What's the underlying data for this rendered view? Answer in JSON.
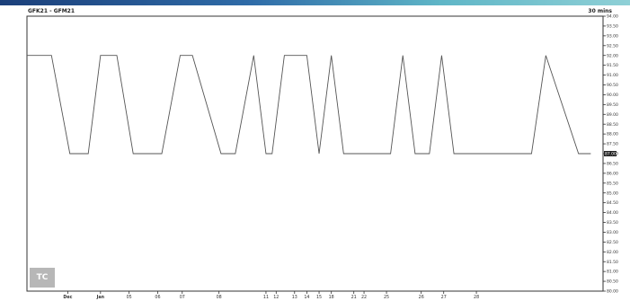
{
  "header": {
    "title": "GFK21 - GFM21",
    "interval": "30 mins"
  },
  "chart_data": {
    "type": "line",
    "x_labels": [
      {
        "label": "Dec",
        "bold": true
      },
      {
        "label": "Jan",
        "bold": true
      },
      {
        "label": "05"
      },
      {
        "label": "06"
      },
      {
        "label": "07"
      },
      {
        "label": "08"
      },
      {
        "label": "11"
      },
      {
        "label": "12"
      },
      {
        "label": "13"
      },
      {
        "label": "14"
      },
      {
        "label": "15"
      },
      {
        "label": "18"
      },
      {
        "label": "21"
      },
      {
        "label": "22"
      },
      {
        "label": "25"
      },
      {
        "label": "26"
      },
      {
        "label": "27"
      },
      {
        "label": "28"
      }
    ],
    "y_ticks": [
      "94.00",
      "93.50",
      "93.00",
      "92.50",
      "92.00",
      "91.50",
      "91.00",
      "90.50",
      "90.00",
      "89.50",
      "89.00",
      "88.50",
      "88.00",
      "87.50",
      "87.00",
      "86.50",
      "86.00",
      "85.50",
      "85.00",
      "84.50",
      "84.00",
      "83.50",
      "83.00",
      "82.50",
      "82.00",
      "81.50",
      "81.00",
      "80.50",
      "80.00"
    ],
    "ylim": [
      80.0,
      94.0
    ],
    "last_value": "87.00",
    "series": [
      {
        "color": "#555555",
        "x": [
          0,
          1.2,
          2.1,
          3.0,
          3.6,
          4.4,
          5.2,
          6.6,
          7.5,
          8.1,
          9.5,
          10.2,
          11.1,
          11.7,
          12.0,
          12.6,
          13.7,
          14.3,
          14.9,
          15.5,
          17.8,
          18.4,
          19.0,
          19.7,
          20.3,
          20.9,
          22.1,
          22.9,
          24.7,
          25.4,
          27.0,
          27.6
        ],
        "y": [
          92.0,
          92.0,
          87.0,
          87.0,
          92.0,
          92.0,
          87.0,
          87.0,
          92.0,
          92.0,
          87.0,
          87.0,
          92.0,
          87.0,
          87.0,
          92.0,
          92.0,
          87.0,
          92.0,
          87.0,
          87.0,
          92.0,
          87.0,
          87.0,
          92.0,
          87.0,
          87.0,
          87.0,
          87.0,
          92.0,
          87.0,
          87.0
        ]
      }
    ],
    "legend": "none",
    "grid": false
  },
  "watermark": {
    "text": "TC"
  }
}
